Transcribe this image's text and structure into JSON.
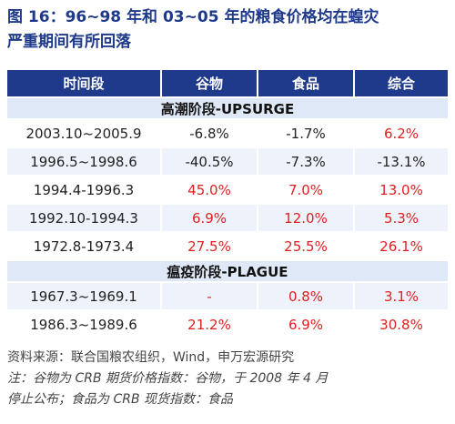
{
  "title": {
    "line1": "图 16：96~98 年和 03~05 年的粮食价格均在蝗灾",
    "line2": "严重期间有所回落"
  },
  "table": {
    "headers": [
      "时间段",
      "谷物",
      "食品",
      "综合"
    ],
    "sections": [
      {
        "label": "高潮阶段-UPSURGE",
        "rows": [
          {
            "period": "2003.10~2005.9",
            "grain": "-6.8%",
            "food": "-1.7%",
            "composite": "6.2%"
          },
          {
            "period": "1996.5~1998.6",
            "grain": "-40.5%",
            "food": "-7.3%",
            "composite": "-13.1%"
          },
          {
            "period": "1994.4-1996.3",
            "grain": "45.0%",
            "food": "7.0%",
            "composite": "13.0%"
          },
          {
            "period": "1992.10-1994.3",
            "grain": "6.9%",
            "food": "12.0%",
            "composite": "5.3%"
          },
          {
            "period": "1972.8-1973.4",
            "grain": "27.5%",
            "food": "25.5%",
            "composite": "26.1%"
          }
        ]
      },
      {
        "label": "瘟疫阶段-PLAGUE",
        "rows": [
          {
            "period": "1967.3~1969.1",
            "grain": "-",
            "food": "0.8%",
            "composite": "3.1%"
          },
          {
            "period": "1986.3~1989.6",
            "grain": "21.2%",
            "food": "6.9%",
            "composite": "30.8%"
          }
        ]
      }
    ],
    "colors": {
      "header_bg": "#1f3a8a",
      "section_bg": "#dfe8f6",
      "positive": "#e02020",
      "negative": "#222222"
    }
  },
  "notes": {
    "source": "资料来源：联合国粮农组织，Wind，申万宏源研究",
    "note_line1": "注：谷物为 CRB 期货价格指数：谷物，于 2008 年 4 月",
    "note_line2": "停止公布；食品为 CRB 现货指数：食品"
  }
}
